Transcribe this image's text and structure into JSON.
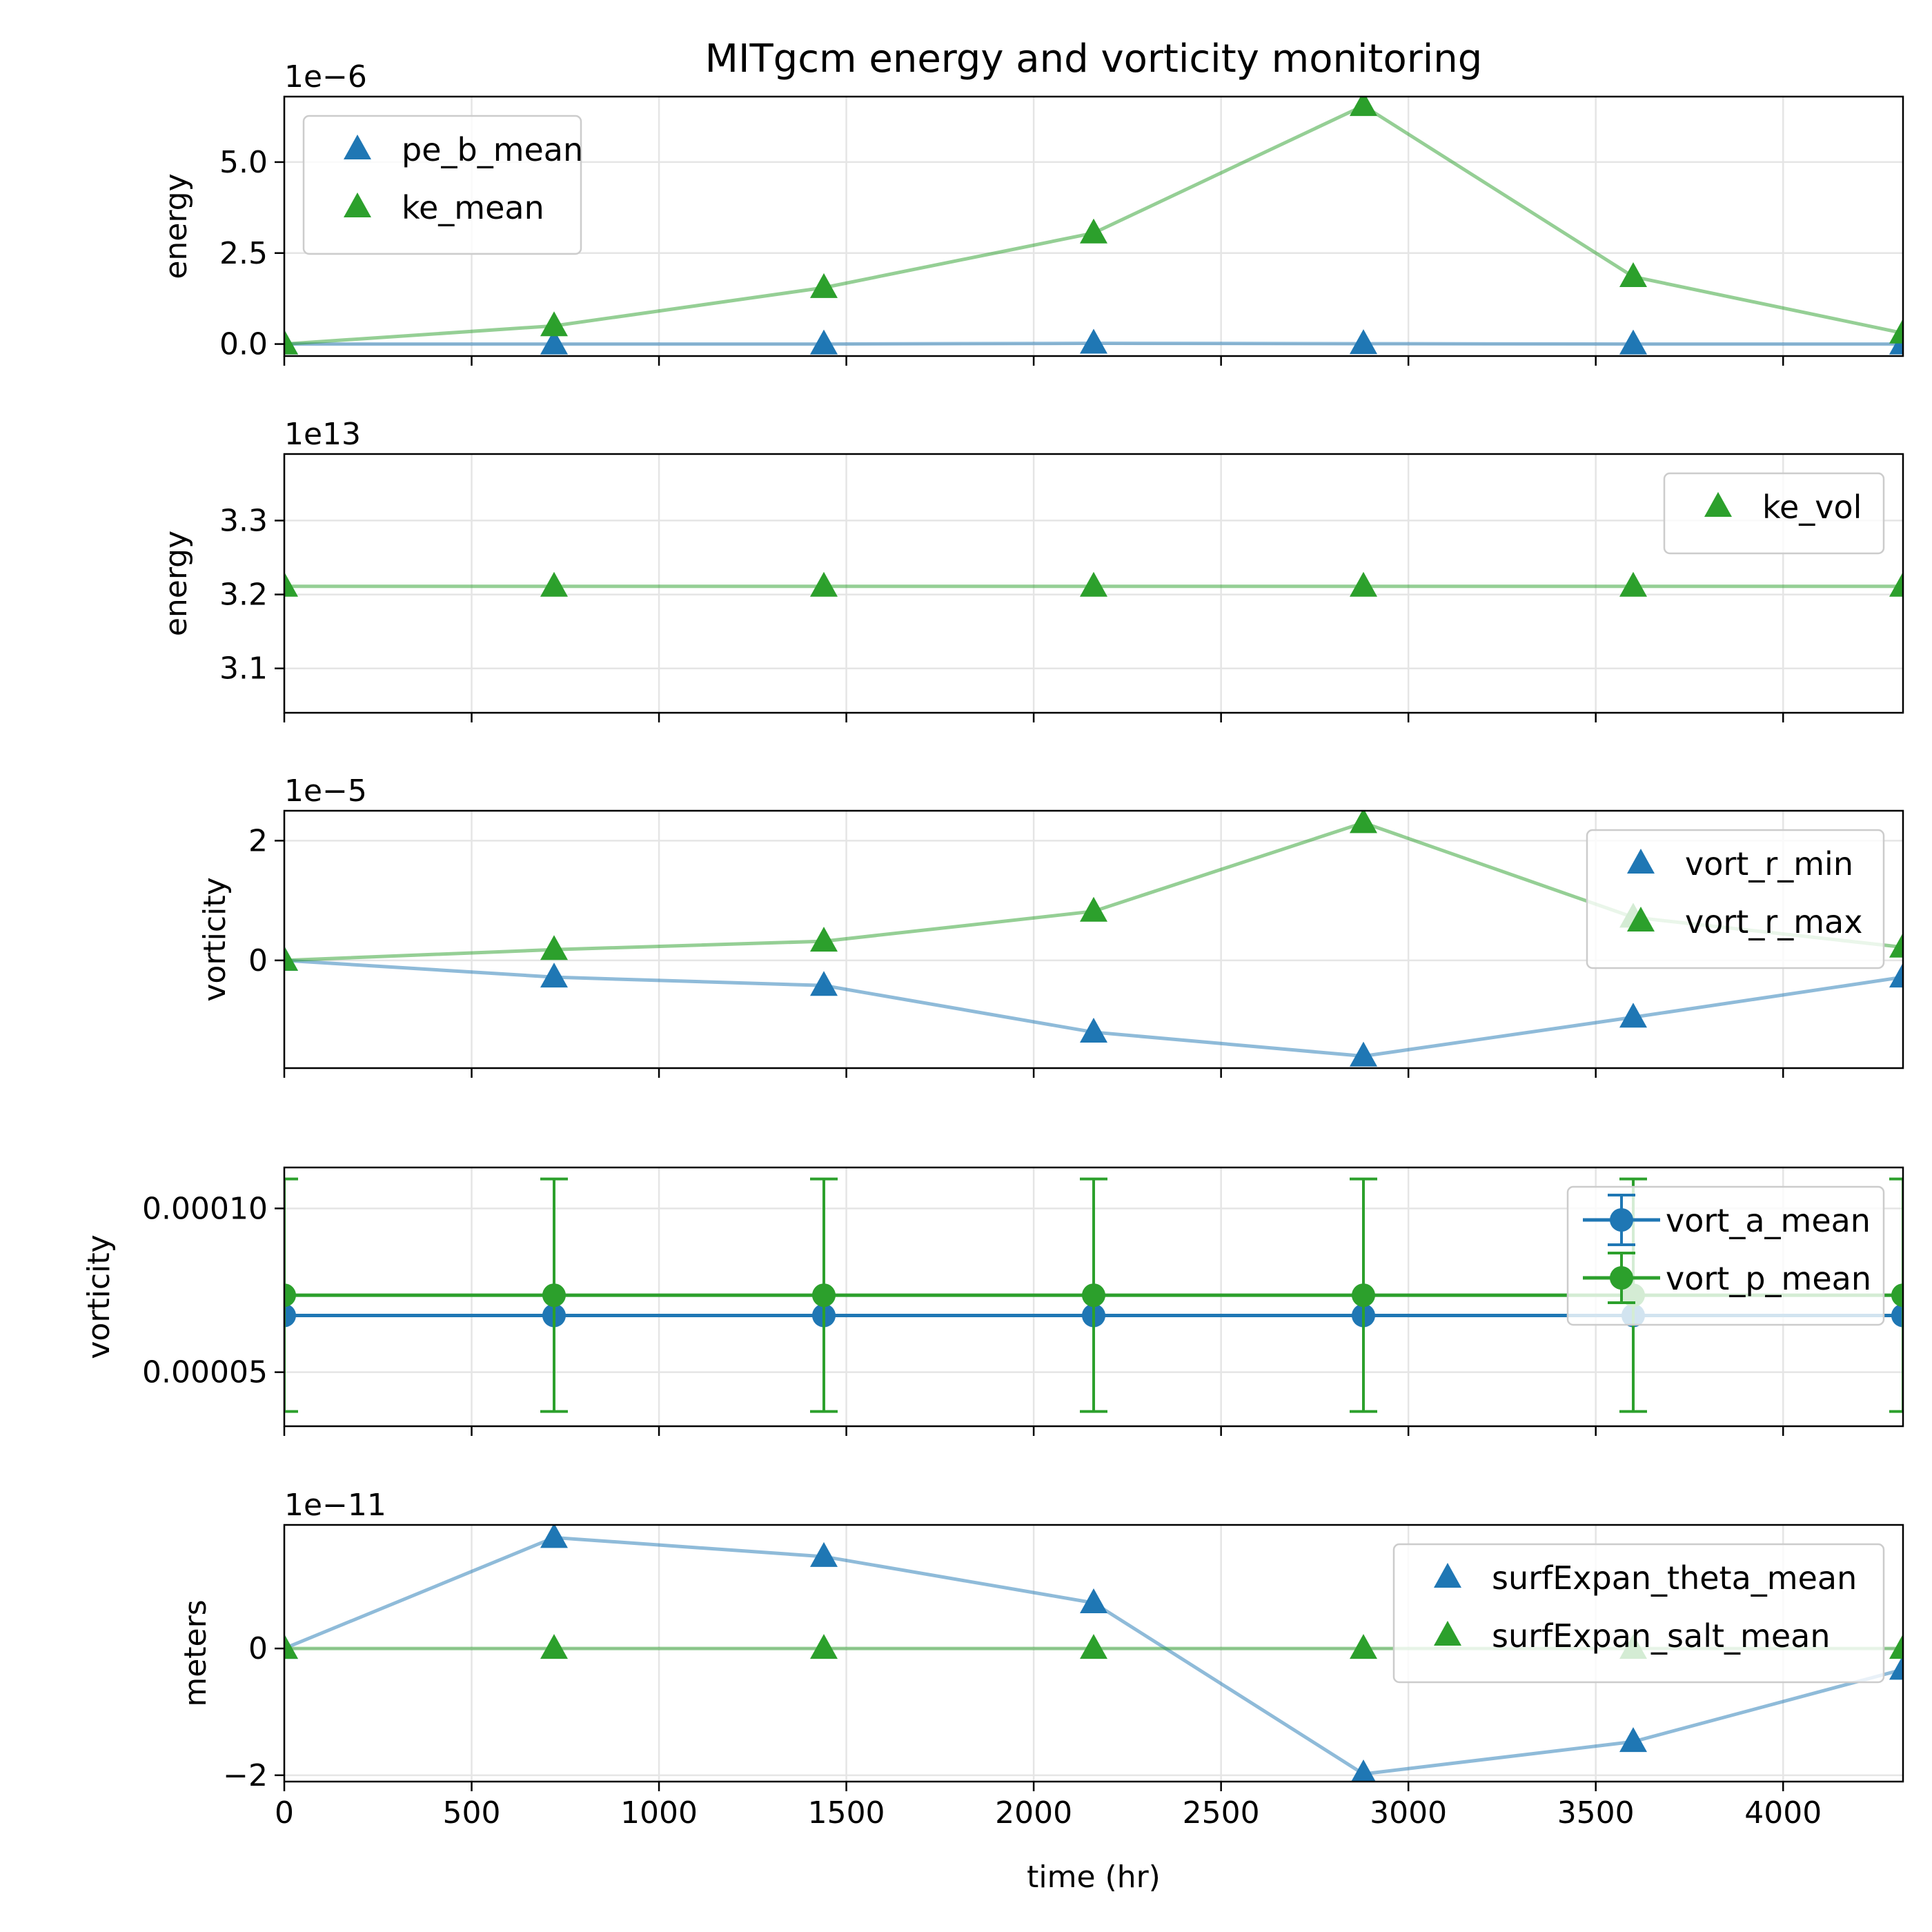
{
  "figure": {
    "title": "MITgcm energy and vorticity monitoring"
  },
  "colors": {
    "blue": "#1f77b4",
    "green": "#2ca02c",
    "grid": "#e5e5e5"
  },
  "x_axis": {
    "label": "time (hr)",
    "lim": [
      0,
      4320
    ],
    "ticks": [
      0,
      500,
      1000,
      1500,
      2000,
      2500,
      3000,
      3500,
      4000
    ],
    "tick_labels": [
      "0",
      "500",
      "1000",
      "1500",
      "2000",
      "2500",
      "3000",
      "3500",
      "4000"
    ]
  },
  "chart_data": [
    {
      "type": "line",
      "ylabel": "energy",
      "offset_text": "1e−6",
      "ylim": [
        -0.33,
        6.8
      ],
      "yticks": [
        0,
        2.5,
        5
      ],
      "ytick_labels": [
        "0.0",
        "2.5",
        "5.0"
      ],
      "grid": true,
      "legend": "top-left",
      "x": [
        0,
        720,
        1440,
        2160,
        2880,
        3600,
        4320
      ],
      "series": [
        {
          "name": "pe_b_mean",
          "color": "blue",
          "marker": "triangle",
          "values": [
            0,
            0,
            0,
            0.02,
            0.01,
            0,
            0
          ]
        },
        {
          "name": "ke_mean",
          "color": "green",
          "marker": "triangle",
          "values": [
            0,
            0.5,
            1.55,
            3.05,
            6.55,
            1.85,
            0.3
          ]
        }
      ]
    },
    {
      "type": "line",
      "ylabel": "energy",
      "offset_text": "1e13",
      "ylim": [
        3.04,
        3.39
      ],
      "yticks": [
        3.1,
        3.2,
        3.3
      ],
      "ytick_labels": [
        "3.1",
        "3.2",
        "3.3"
      ],
      "grid": true,
      "legend": "top-right",
      "x": [
        0,
        720,
        1440,
        2160,
        2880,
        3600,
        4320
      ],
      "series": [
        {
          "name": "ke_vol",
          "color": "green",
          "marker": "triangle",
          "values": [
            3.211,
            3.211,
            3.211,
            3.211,
            3.211,
            3.211,
            3.211
          ]
        }
      ]
    },
    {
      "type": "line",
      "ylabel": "vorticity",
      "offset_text": "1e−5",
      "ylim": [
        -1.8,
        2.5
      ],
      "yticks": [
        0,
        2
      ],
      "ytick_labels": [
        "0",
        "2"
      ],
      "grid": true,
      "legend": "top-right",
      "x": [
        0,
        720,
        1440,
        2160,
        2880,
        3600,
        4320
      ],
      "series": [
        {
          "name": "vort_r_min",
          "color": "blue",
          "marker": "triangle",
          "values": [
            0,
            -0.28,
            -0.42,
            -1.2,
            -1.6,
            -0.95,
            -0.28
          ]
        },
        {
          "name": "vort_r_max",
          "color": "green",
          "marker": "triangle",
          "values": [
            0,
            0.18,
            0.32,
            0.82,
            2.3,
            0.72,
            0.22
          ]
        }
      ]
    },
    {
      "type": "errorbar",
      "ylabel": "vorticity",
      "offset_text": "",
      "ylim": [
        3.35e-05,
        0.0001125
      ],
      "yticks": [
        5e-05,
        0.0001
      ],
      "ytick_labels": [
        "0.00005",
        "0.00010"
      ],
      "grid": true,
      "legend": "top-right",
      "x": [
        0,
        720,
        1440,
        2160,
        2880,
        3600,
        4320
      ],
      "series": [
        {
          "name": "vort_a_mean",
          "color": "blue",
          "marker": "circle",
          "values": [
            6.73e-05,
            6.73e-05,
            6.73e-05,
            6.73e-05,
            6.73e-05,
            6.73e-05,
            6.73e-05
          ],
          "err": [
            0,
            0,
            0,
            0,
            0,
            0,
            0
          ]
        },
        {
          "name": "vort_p_mean",
          "color": "green",
          "marker": "circle",
          "values": [
            7.35e-05,
            7.35e-05,
            7.35e-05,
            7.35e-05,
            7.35e-05,
            7.35e-05,
            7.35e-05
          ],
          "err": [
            3.55e-05,
            3.55e-05,
            3.55e-05,
            3.55e-05,
            3.55e-05,
            3.55e-05,
            3.55e-05
          ]
        }
      ]
    },
    {
      "type": "line",
      "ylabel": "meters",
      "offset_text": "1e−11",
      "ylim": [
        -2.1,
        1.95
      ],
      "yticks": [
        -2,
        0
      ],
      "ytick_labels": [
        "−2",
        "0"
      ],
      "grid": true,
      "legend": "top-right",
      "x": [
        0,
        720,
        1440,
        2160,
        2880,
        3600,
        4320
      ],
      "series": [
        {
          "name": "surfExpan_theta_mean",
          "color": "blue",
          "marker": "triangle",
          "values": [
            0,
            1.75,
            1.45,
            0.72,
            -1.98,
            -1.47,
            -0.33
          ]
        },
        {
          "name": "surfExpan_salt_mean",
          "color": "green",
          "marker": "triangle",
          "values": [
            0,
            0,
            0,
            0,
            0,
            0,
            0
          ]
        }
      ]
    }
  ]
}
